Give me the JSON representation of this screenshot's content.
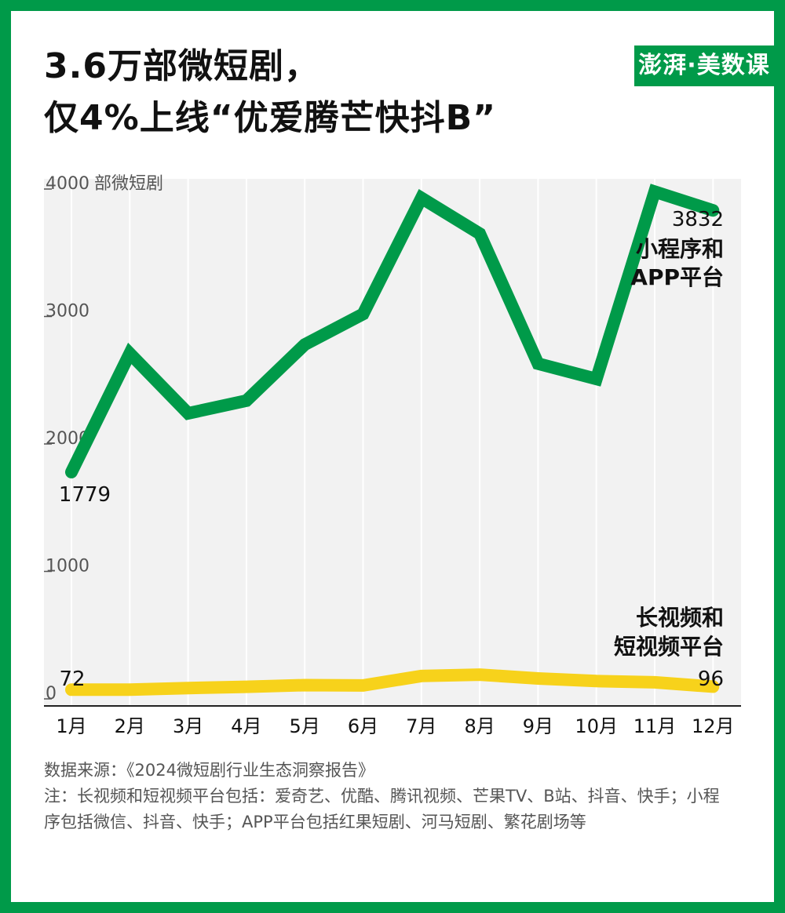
{
  "title": {
    "line1": "3.6万部微短剧，",
    "line2": "仅4%上线“优爱腾芒快抖B”"
  },
  "logo": {
    "text": "澎湃·美数课"
  },
  "colors": {
    "frame": "#009a49",
    "plot_bg": "#f2f2f2",
    "line_green": "#009a49",
    "line_yellow": "#f7d21b"
  },
  "chart_data": {
    "type": "line",
    "categories": [
      "1月",
      "2月",
      "3月",
      "4月",
      "5月",
      "6月",
      "7月",
      "8月",
      "9月",
      "10月",
      "11月",
      "12月"
    ],
    "ylabel": "部微短剧",
    "ylim": [
      0,
      4000
    ],
    "yticks": [
      "0",
      "1000",
      "2000",
      "3000",
      "4000"
    ],
    "grid": "vertical",
    "series": [
      {
        "name": "小程序和APP平台",
        "label_lines": [
          "小程序和",
          "APP平台"
        ],
        "color": "#009a49",
        "values": [
          1779,
          2710,
          2240,
          2340,
          2780,
          3020,
          3930,
          3650,
          2630,
          2510,
          3980,
          3832
        ],
        "start_label": "1779",
        "end_label": "3832"
      },
      {
        "name": "长视频和短视频平台",
        "label_lines": [
          "长视频和",
          "短视频平台"
        ],
        "color": "#f7d21b",
        "values": [
          72,
          72,
          85,
          95,
          108,
          105,
          180,
          190,
          160,
          140,
          130,
          96
        ],
        "start_label": "72",
        "end_label": "96"
      }
    ]
  },
  "source": {
    "line1": "数据来源：《2024微短剧行业生态洞察报告》",
    "note": "注：长视频和短视频平台包括：爱奇艺、优酷、腾讯视频、芒果TV、B站、抖音、快手；小程序包括微信、抖音、快手；APP平台包括红果短剧、河马短剧、繁花剧场等"
  }
}
